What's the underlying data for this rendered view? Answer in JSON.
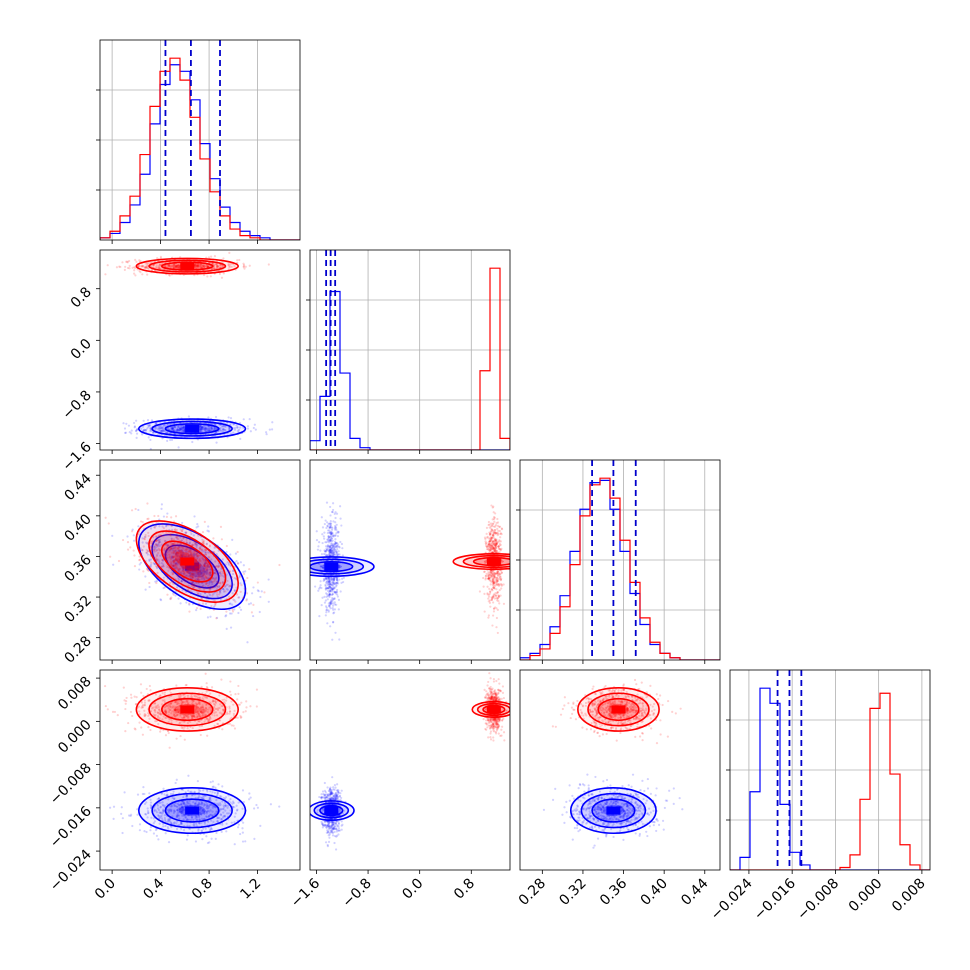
{
  "chart_data": {
    "type": "scatter",
    "title": "",
    "colors": {
      "series_a": "#0000ff",
      "series_b": "#ff0000",
      "quantile_line": "#0000cc",
      "grid": "#b0b0b0"
    },
    "grid": true,
    "legend": "none",
    "parameters": [
      {
        "index": 0,
        "range": [
          -0.1,
          1.55
        ],
        "ticks": [
          "0.0",
          "0.4",
          "0.8",
          "1.2"
        ],
        "tick_values": [
          0.0,
          0.4,
          0.8,
          1.2
        ]
      },
      {
        "index": 1,
        "range": [
          -1.7,
          1.4
        ],
        "ticks": [
          "−1.6",
          "−0.8",
          "0.0",
          "0.8"
        ],
        "tick_values": [
          -1.6,
          -0.8,
          0.0,
          0.8
        ]
      },
      {
        "index": 2,
        "range": [
          0.258,
          0.455
        ],
        "ticks": [
          "0.28",
          "0.32",
          "0.36",
          "0.40",
          "0.44"
        ],
        "tick_values": [
          0.28,
          0.32,
          0.36,
          0.4,
          0.44
        ]
      },
      {
        "index": 3,
        "range": [
          -0.0275,
          0.0095
        ],
        "ticks": [
          "−0.024",
          "−0.016",
          "−0.008",
          "0.000",
          "0.008"
        ],
        "tick_values": [
          -0.024,
          -0.016,
          -0.008,
          0.0,
          0.008
        ]
      }
    ],
    "series": [
      {
        "color": "#0000ff",
        "mean": [
          0.66,
          -1.37,
          0.35,
          -0.0165
        ],
        "std": [
          0.22,
          0.075,
          0.021,
          0.0021
        ]
      },
      {
        "color": "#ff0000",
        "mean": [
          0.62,
          1.15,
          0.355,
          0.0022
        ],
        "std": [
          0.21,
          0.06,
          0.02,
          0.002
        ]
      }
    ],
    "correlations": {
      "0-2": -0.55
    },
    "quantiles": [
      [
        0.44,
        0.65,
        0.89
      ],
      [
        -1.45,
        -1.38,
        -1.31
      ],
      [
        0.329,
        0.35,
        0.372
      ],
      [
        -0.0187,
        -0.0165,
        -0.0143
      ]
    ],
    "histograms": [
      {
        "bins": [
          -0.1,
          1.55
        ],
        "series_a": [
          0.1,
          0.3,
          0.8,
          1.6,
          3.0,
          5.3,
          7.1,
          8.0,
          7.7,
          6.4,
          4.4,
          2.8,
          1.5,
          0.8,
          0.4,
          0.2,
          0.1,
          0.0,
          0.0,
          0.0
        ],
        "series_b": [
          0.1,
          0.4,
          1.1,
          2.0,
          3.9,
          6.1,
          7.7,
          8.3,
          7.3,
          5.6,
          3.7,
          2.2,
          1.1,
          0.5,
          0.2,
          0.1,
          0.0,
          0.0,
          0.0,
          0.0
        ]
      },
      {
        "bins": [
          -1.7,
          1.4
        ],
        "series_a": [
          0.4,
          2.3,
          6.8,
          3.3,
          0.5,
          0.1,
          0.0,
          0.0,
          0.0,
          0.0,
          0.0,
          0.0,
          0.0,
          0.0,
          0.0,
          0.0,
          0.0,
          0.0,
          0.0,
          0.0
        ],
        "series_b": [
          0.0,
          0.0,
          0.0,
          0.0,
          0.0,
          0.0,
          0.0,
          0.0,
          0.0,
          0.0,
          0.0,
          0.0,
          0.0,
          0.0,
          0.0,
          0.0,
          0.0,
          3.4,
          7.8,
          0.5
        ]
      },
      {
        "bins": [
          0.258,
          0.455
        ],
        "series_a": [
          0.1,
          0.3,
          0.7,
          1.5,
          2.9,
          4.9,
          6.8,
          8.0,
          8.1,
          6.8,
          4.9,
          3.0,
          1.6,
          0.7,
          0.3,
          0.1,
          0.0,
          0.0,
          0.0,
          0.0
        ],
        "series_b": [
          0.0,
          0.2,
          0.5,
          1.2,
          2.4,
          4.3,
          6.5,
          7.9,
          8.2,
          7.3,
          5.4,
          3.5,
          1.9,
          0.8,
          0.3,
          0.1,
          0.0,
          0.0,
          0.0,
          0.0
        ]
      },
      {
        "bins": [
          -0.0275,
          0.0095
        ],
        "series_a": [
          0.0,
          0.5,
          3.1,
          7.2,
          6.6,
          2.6,
          0.7,
          0.2,
          0.0,
          0.0,
          0.0,
          0.0,
          0.0,
          0.0,
          0.0,
          0.0,
          0.0,
          0.0,
          0.0,
          0.0
        ],
        "series_b": [
          0.0,
          0.0,
          0.0,
          0.0,
          0.0,
          0.0,
          0.0,
          0.0,
          0.0,
          0.0,
          0.0,
          0.1,
          0.6,
          2.8,
          6.4,
          7.0,
          3.8,
          1.0,
          0.2,
          0.0
        ]
      }
    ]
  }
}
